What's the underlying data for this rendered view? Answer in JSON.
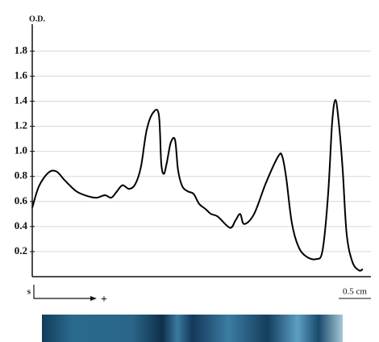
{
  "chart_data": {
    "type": "line",
    "y_label": "O.D.",
    "sample_label": "s",
    "direction_label": "+",
    "scale_label": "0.5 cm",
    "x": [
      0,
      2,
      4.9,
      7.3,
      9.8,
      13.4,
      17.1,
      19.5,
      22,
      23.9,
      25.6,
      27.3,
      29.3,
      31.2,
      32.9,
      34.6,
      36.6,
      38.3,
      39,
      39.8,
      40.7,
      41.9,
      43.2,
      44.1,
      45.4,
      47.1,
      48.8,
      50.5,
      52.4,
      54.1,
      56.1,
      59.8,
      61.5,
      62.9,
      64.1,
      67.1,
      70.7,
      74.4,
      75.6,
      76.8,
      78.5,
      80.5,
      82.9,
      85.9,
      87.8,
      89.5,
      90.7,
      91.7,
      92.7,
      93.9,
      95.1,
      96.8,
      98.8,
      100
    ],
    "series": [
      {
        "color": "#000000",
        "values": [
          0.55,
          0.72,
          0.83,
          0.84,
          0.77,
          0.68,
          0.64,
          0.63,
          0.65,
          0.63,
          0.68,
          0.73,
          0.7,
          0.74,
          0.88,
          1.17,
          1.31,
          1.29,
          0.91,
          0.82,
          0.91,
          1.07,
          1.09,
          0.85,
          0.72,
          0.68,
          0.66,
          0.58,
          0.54,
          0.5,
          0.48,
          0.39,
          0.45,
          0.5,
          0.42,
          0.5,
          0.75,
          0.96,
          0.96,
          0.79,
          0.43,
          0.24,
          0.16,
          0.14,
          0.21,
          0.66,
          1.23,
          1.41,
          1.23,
          0.85,
          0.34,
          0.12,
          0.05,
          0.06
        ]
      }
    ],
    "xlim": [
      0,
      100
    ],
    "ylim": [
      0,
      1.95
    ],
    "yticks": [
      0.2,
      0.4,
      0.6,
      0.8,
      {
        "value": 1,
        "label": "1.0"
      },
      1.2,
      1.4,
      1.6,
      1.8
    ],
    "grid": true
  }
}
